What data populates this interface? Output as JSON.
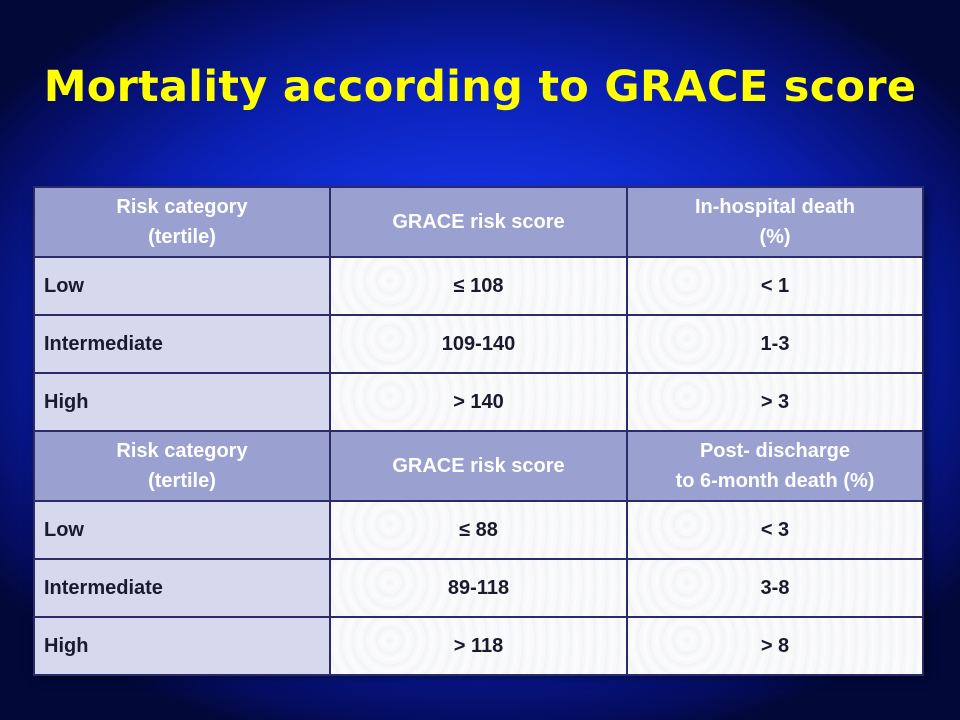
{
  "slide": {
    "title": "Mortality according to GRACE score"
  },
  "table": {
    "sections": [
      {
        "header": {
          "col1_line1": "Risk category",
          "col1_line2": "(tertile)",
          "col2": "GRACE risk score",
          "col3_line1": "In-hospital death",
          "col3_line2": "(%)"
        },
        "rows": [
          {
            "category": "Low",
            "score": "≤ 108",
            "death": "< 1"
          },
          {
            "category": "Intermediate",
            "score": "109-140",
            "death": "1-3"
          },
          {
            "category": "High",
            "score": "> 140",
            "death": "> 3"
          }
        ]
      },
      {
        "header": {
          "col1_line1": "Risk category",
          "col1_line2": "(tertile)",
          "col2": "GRACE risk score",
          "col3_line1": "Post- discharge",
          "col3_line2": "to 6-month death (%)"
        },
        "rows": [
          {
            "category": "Low",
            "score": "≤ 88",
            "death": "< 3"
          },
          {
            "category": "Intermediate",
            "score": "89-118",
            "death": "3-8"
          },
          {
            "category": "High",
            "score": "> 118",
            "death": "> 8"
          }
        ]
      }
    ]
  }
}
